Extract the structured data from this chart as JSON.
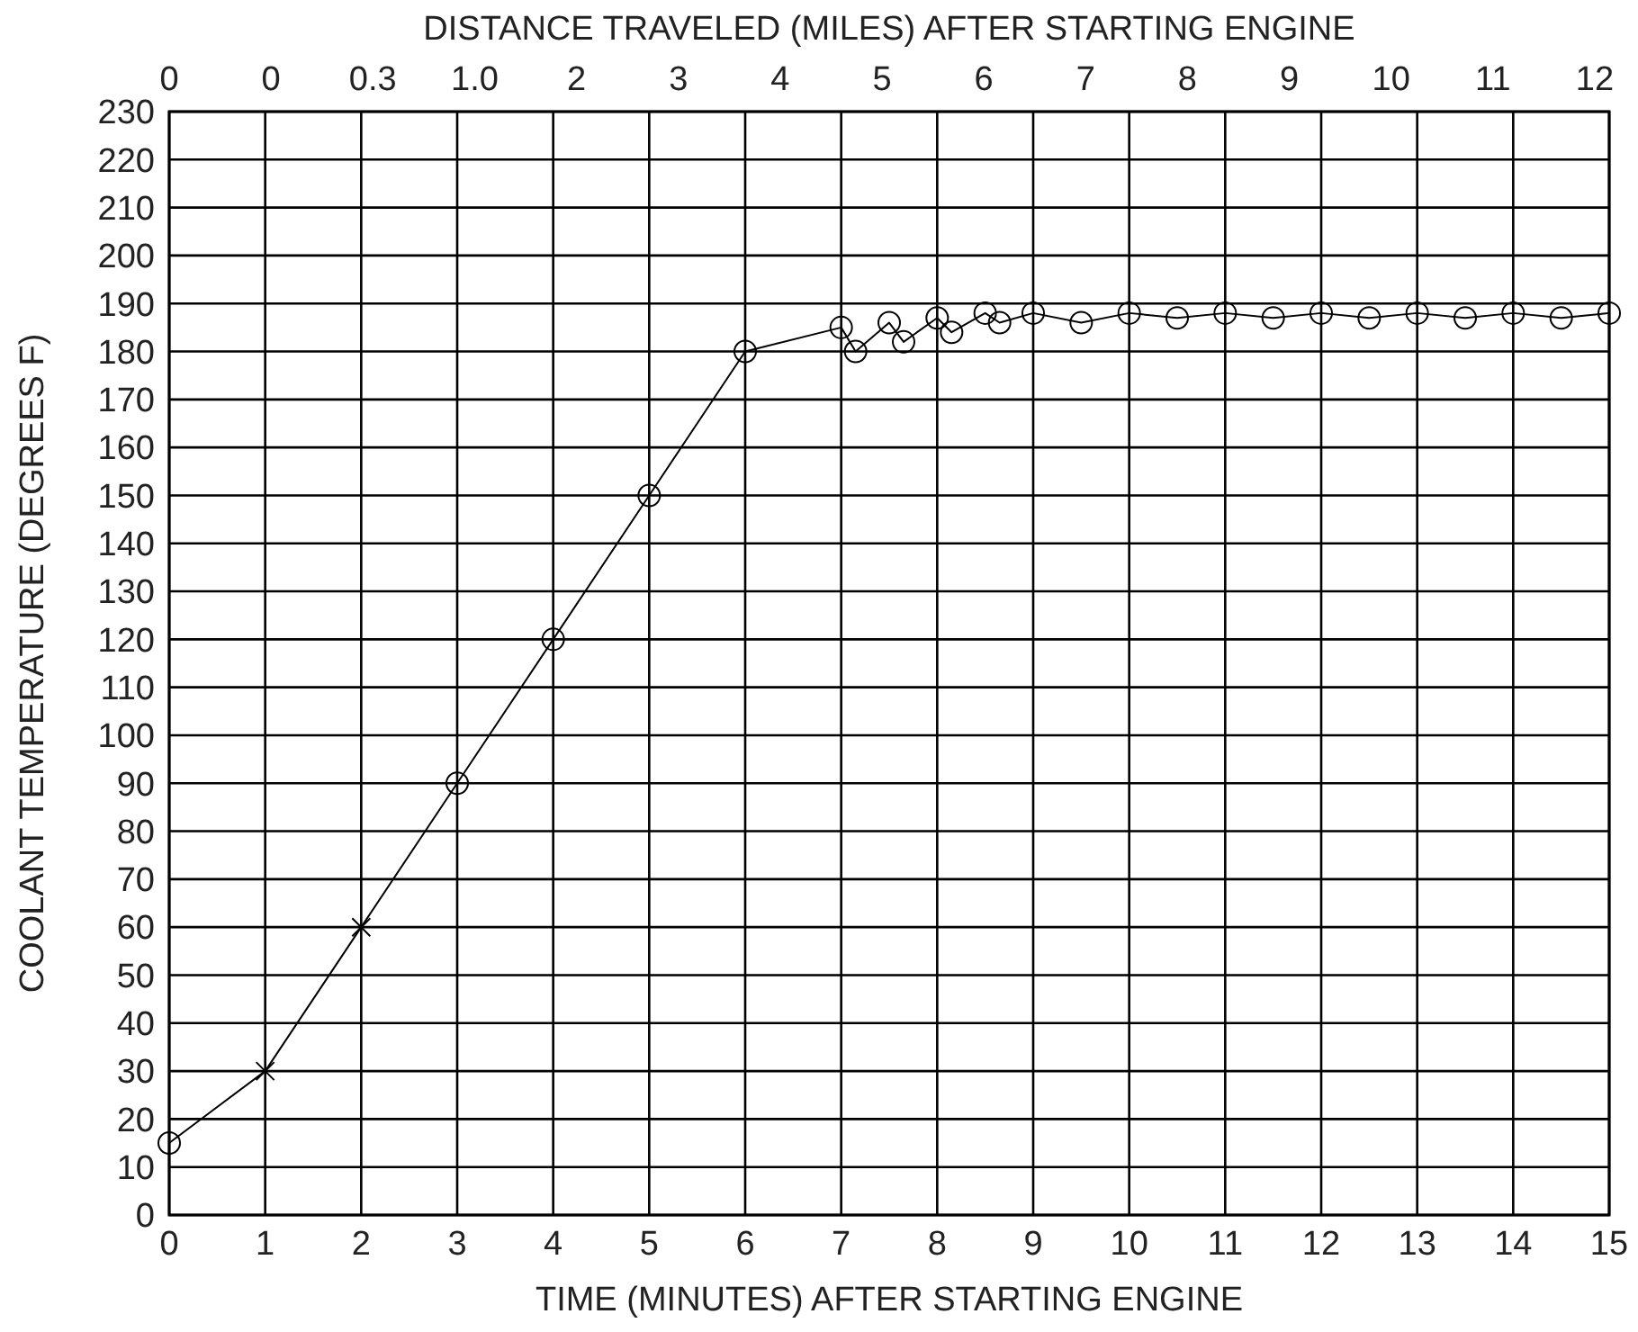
{
  "chart_data": {
    "type": "line",
    "xlabel": "TIME (MINUTES) AFTER STARTING ENGINE",
    "ylabel": "COOLANT TEMPERATURE (DEGREES F)",
    "x2label": "DISTANCE TRAVELED (MILES) AFTER STARTING ENGINE",
    "xlim": [
      0,
      15
    ],
    "xticks": [
      0,
      1,
      2,
      3,
      4,
      5,
      6,
      7,
      8,
      9,
      10,
      11,
      12,
      13,
      14,
      15
    ],
    "annotations": [
      "0",
      "0",
      "0.3",
      "1.0",
      "2",
      "3",
      "4",
      "5",
      "6",
      "7",
      "8",
      "9",
      "10",
      "11",
      "12"
    ],
    "ylim": [
      0,
      230
    ],
    "yticks": [
      0,
      10,
      20,
      30,
      40,
      50,
      60,
      70,
      80,
      90,
      100,
      110,
      120,
      130,
      140,
      150,
      160,
      170,
      180,
      190,
      200,
      210,
      220,
      230
    ],
    "grid": true,
    "series": [
      {
        "color": "#000000",
        "marker": "none",
        "x": [
          0,
          1,
          2,
          3,
          4,
          5,
          6,
          7,
          7.15,
          7.5,
          7.65,
          8,
          8.15,
          8.5,
          8.65,
          9,
          9.5,
          10,
          10.5,
          11,
          11.5,
          12,
          12.5,
          13,
          13.5,
          14,
          14.5,
          15
        ],
        "values": [
          15,
          30,
          60,
          90,
          120,
          150,
          180,
          185,
          180,
          186,
          182,
          187,
          184,
          188,
          186,
          188,
          186,
          188,
          187,
          188,
          187,
          188,
          187,
          188,
          187,
          188,
          187,
          188
        ]
      },
      {
        "type": "scatter",
        "color": "#000000",
        "marker": "circle",
        "x": [
          0,
          3,
          4,
          5,
          6,
          7,
          7.15,
          7.5,
          7.65,
          8,
          8.15,
          8.5,
          8.65,
          9,
          9.5,
          10,
          10.5,
          11,
          11.5,
          12,
          12.5,
          13,
          13.5,
          14,
          14.5,
          15
        ],
        "values": [
          15,
          90,
          120,
          150,
          180,
          185,
          180,
          186,
          182,
          187,
          184,
          188,
          186,
          188,
          186,
          188,
          187,
          188,
          187,
          188,
          187,
          188,
          187,
          188,
          187,
          188
        ]
      },
      {
        "type": "scatter",
        "color": "#000000",
        "marker": "cross",
        "x": [
          1,
          2
        ],
        "values": [
          30,
          60
        ]
      }
    ]
  }
}
